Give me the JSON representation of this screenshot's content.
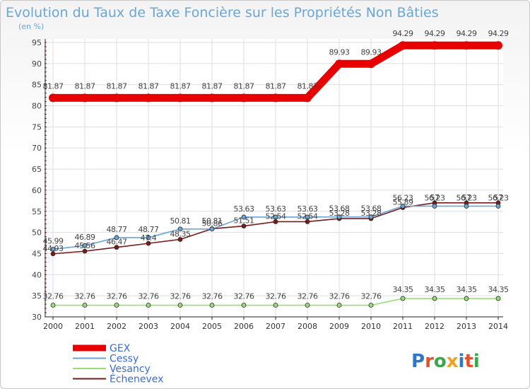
{
  "chart_data": {
    "type": "line",
    "title": "Evolution du Taux de Taxe Foncière sur les Propriétés Non Bâties",
    "subtitle": "(en %)",
    "xlabel": "",
    "ylabel": "(en %)",
    "ylim": [
      30,
      95
    ],
    "yticks": [
      30,
      35,
      40,
      45,
      50,
      55,
      60,
      65,
      70,
      75,
      80,
      85,
      90,
      95
    ],
    "grid": true,
    "legend_position": "bottom-left",
    "categories": [
      "2000",
      "2001",
      "2002",
      "2003",
      "2004",
      "2005",
      "2006",
      "2007",
      "2008",
      "2009",
      "2010",
      "2011",
      "2012",
      "2013",
      "2014"
    ],
    "series": [
      {
        "name": "GEX",
        "color": "#e80000",
        "values": [
          81.87,
          81.87,
          81.87,
          81.87,
          81.87,
          81.87,
          81.87,
          81.87,
          81.87,
          89.93,
          89.93,
          94.29,
          94.29,
          94.29,
          94.29
        ],
        "labels": [
          "81.87",
          "81.87",
          "81.87",
          "81.87",
          "81.87",
          "81.87",
          "81.87",
          "81.87",
          "81.87",
          "89.93",
          "89.93",
          "94.29",
          "94.29",
          "94.29",
          "94.29"
        ]
      },
      {
        "name": "Cessy",
        "color": "#6aa6d6",
        "values": [
          45.99,
          46.89,
          48.77,
          48.77,
          50.81,
          50.81,
          53.63,
          53.63,
          53.63,
          53.68,
          53.68,
          56.23,
          56.23,
          56.23,
          56.23
        ],
        "labels": [
          "45.99",
          "46.89",
          "48.77",
          "48.77",
          "50.81",
          "50.81",
          "53.63",
          "53.63",
          "53.63",
          "53.68",
          "53.68",
          "56.23",
          "56.23",
          "56.23",
          "56.23"
        ]
      },
      {
        "name": "Vesancy",
        "color": "#99dd77",
        "values": [
          32.76,
          32.76,
          32.76,
          32.76,
          32.76,
          32.76,
          32.76,
          32.76,
          32.76,
          32.76,
          32.76,
          34.35,
          34.35,
          34.35,
          34.35
        ],
        "labels": [
          "32.76",
          "32.76",
          "32.76",
          "32.76",
          "32.76",
          "32.76",
          "32.76",
          "32.76",
          "32.76",
          "32.76",
          "32.76",
          "34.35",
          "34.35",
          "34.35",
          "34.35"
        ]
      },
      {
        "name": "Échenevex",
        "color": "#7a1a1a",
        "values": [
          44.93,
          45.56,
          46.47,
          47.4,
          48.35,
          50.86,
          51.51,
          52.54,
          52.54,
          53.28,
          53.28,
          55.89,
          57,
          57,
          57
        ],
        "labels": [
          "44.93",
          "45.56",
          "46.47",
          "47.4",
          "48.35",
          "50.86",
          "51.51",
          "52.54",
          "52.54",
          "53.28",
          "53.28",
          "55.89",
          "57",
          "57",
          "57"
        ]
      }
    ]
  },
  "logo": {
    "text": "Proxiti"
  }
}
